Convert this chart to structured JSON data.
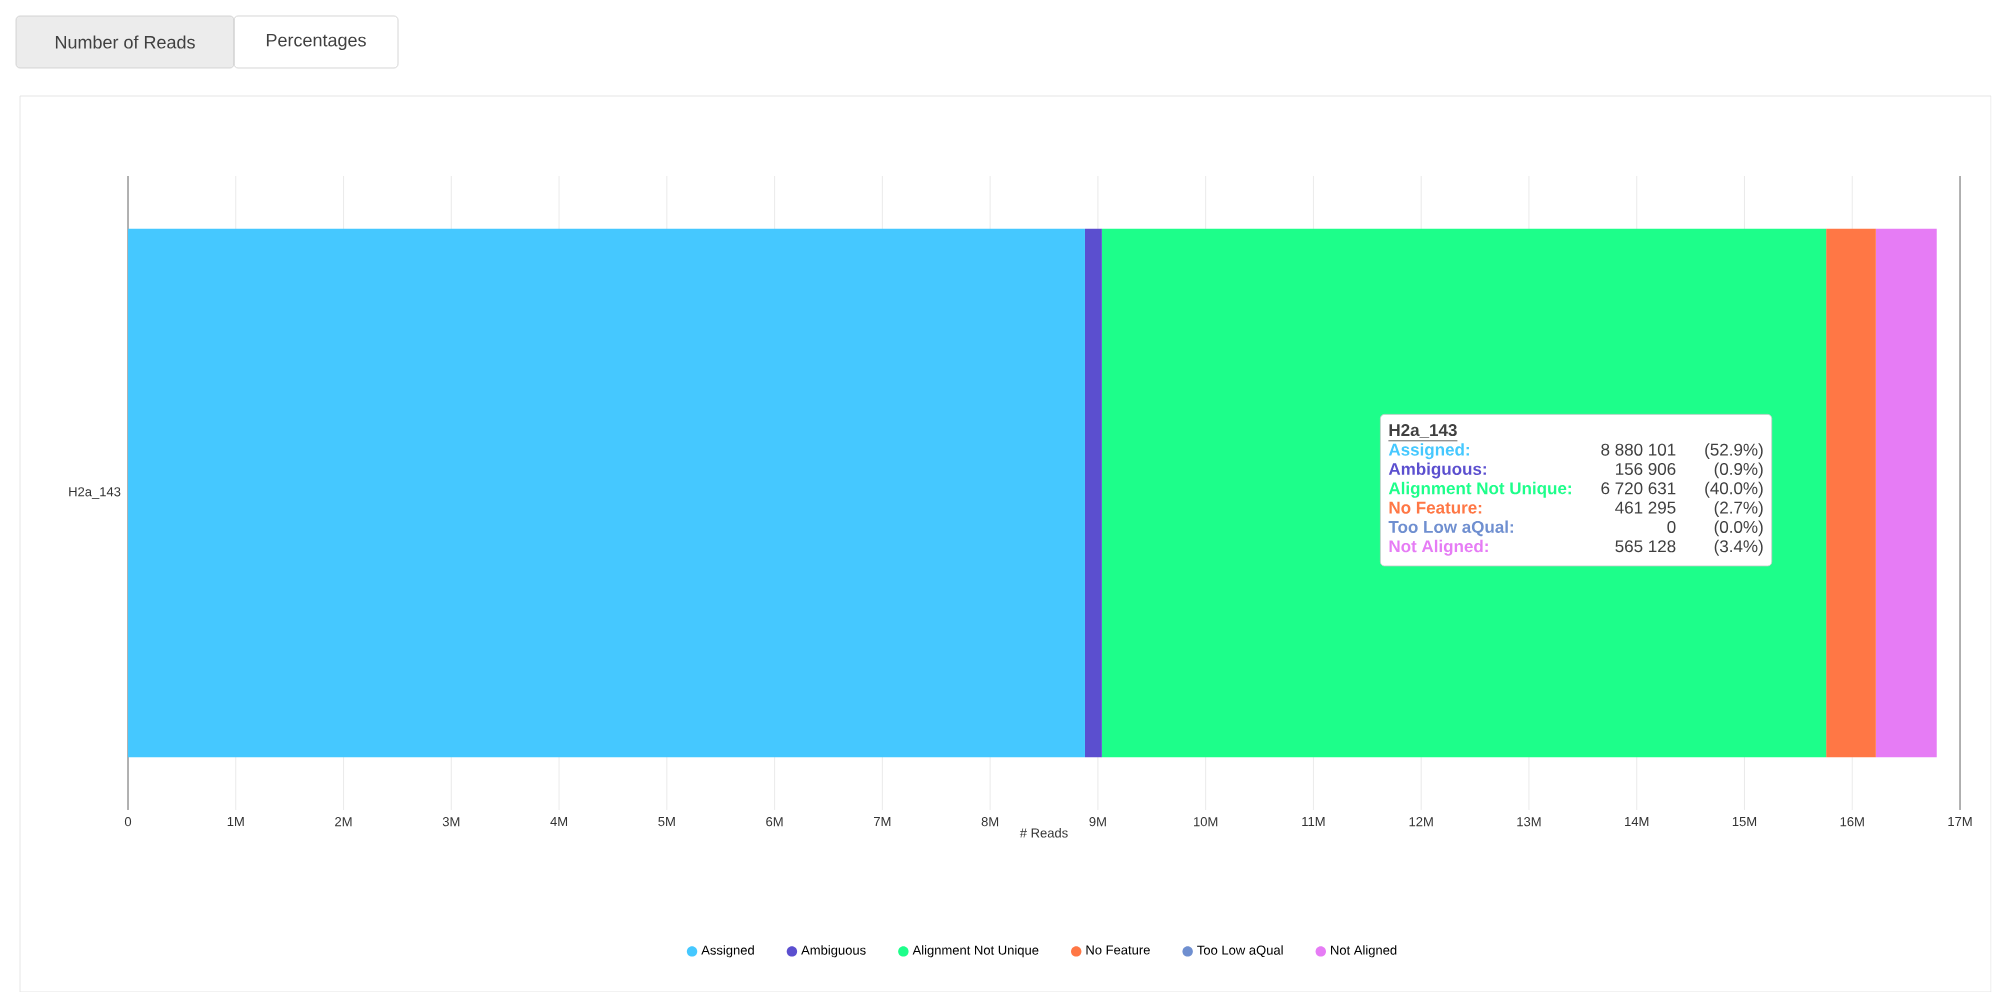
{
  "chart_data": {
    "type": "bar",
    "orientation": "horizontal",
    "stacked": true,
    "xlabel": "# Reads",
    "categories": [
      "H2a_143"
    ],
    "series": [
      {
        "name": "Assigned",
        "color": "#45c8ff",
        "values": [
          8880101
        ]
      },
      {
        "name": "Ambiguous",
        "color": "#5b4fcf",
        "values": [
          156906
        ]
      },
      {
        "name": "Alignment Not Unique",
        "color": "#1dfe8a",
        "values": [
          6720631
        ]
      },
      {
        "name": "No Feature",
        "color": "#ff7745",
        "values": [
          461295
        ]
      },
      {
        "name": "Too Low aQual",
        "color": "#6f8fd0",
        "values": [
          0
        ]
      },
      {
        "name": "Not Aligned",
        "color": "#e67cf5",
        "values": [
          565128
        ]
      }
    ],
    "xlim": [
      0,
      17000000
    ],
    "xticks": [
      0,
      {
        "value": 1000000,
        "label": "1M"
      },
      {
        "value": 2000000,
        "label": "2M"
      },
      {
        "value": 3000000,
        "label": "3M"
      },
      {
        "value": 4000000,
        "label": "4M"
      },
      {
        "value": 5000000,
        "label": "5M"
      },
      {
        "value": 6000000,
        "label": "6M"
      },
      {
        "value": 7000000,
        "label": "7M"
      },
      {
        "value": 8000000,
        "label": "8M"
      },
      {
        "value": 9000000,
        "label": "9M"
      },
      {
        "value": 10000000,
        "label": "10M"
      },
      {
        "value": 11000000,
        "label": "11M"
      },
      {
        "value": 12000000,
        "label": "12M"
      },
      {
        "value": 13000000,
        "label": "13M"
      },
      {
        "value": 14000000,
        "label": "14M"
      },
      {
        "value": 15000000,
        "label": "15M"
      },
      {
        "value": 16000000,
        "label": "16M"
      },
      {
        "value": 17000000,
        "label": "17M"
      }
    ],
    "grid": "x",
    "legend": "bottom",
    "annotations": [
      "Number of Reads",
      "Percentages",
      "H2a_143",
      "Assigned:",
      "8 880 101",
      "(52.9%)",
      "Ambiguous:",
      "156 906",
      "(0.9%)",
      "Alignment Not Unique:",
      "6 720 631",
      "(40.0%)",
      "No Feature:",
      "461 295",
      "(2.7%)",
      "Too Low aQual:",
      "0",
      "(0.0%)",
      "Not Aligned:",
      "565 128",
      "(3.4%)"
    ]
  }
}
